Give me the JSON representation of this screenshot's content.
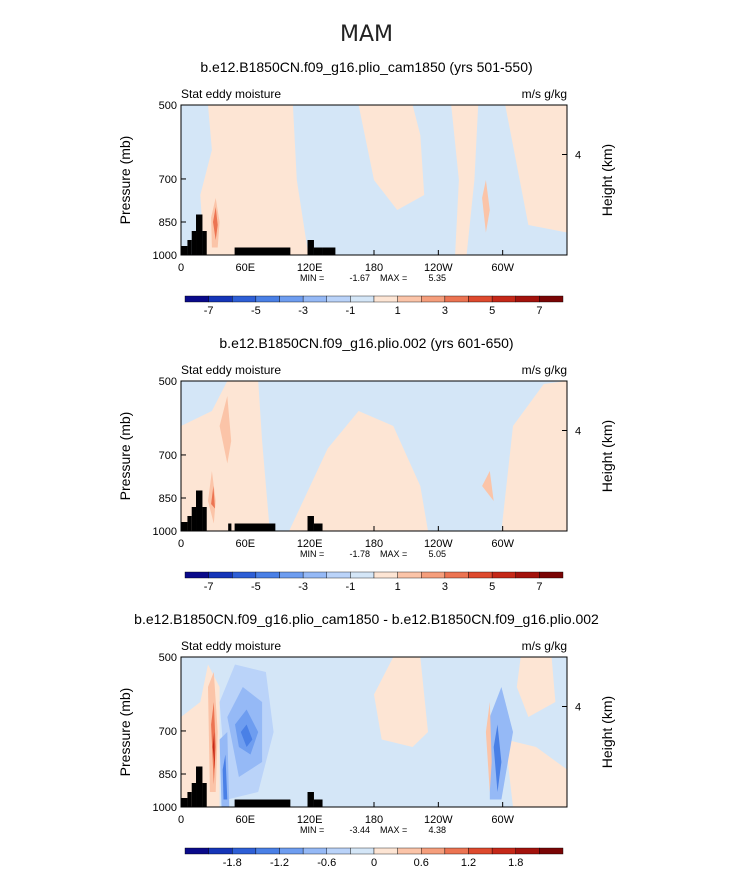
{
  "figure": {
    "title": "MAM"
  },
  "colors": {
    "land": "#000000",
    "pos_light": "#fde5d4",
    "neg_light": "#d4e6f7"
  },
  "chart_data": [
    {
      "type": "heatmap",
      "title": "b.e12.B1850CN.f09_g16.plio_cam1850 (yrs 501-550)",
      "left_label": "Stat eddy moisture",
      "right_label": "m/s g/kg",
      "ylabel": "Pressure (mb)",
      "y2label": "Height (km)",
      "yticks": [
        "500",
        "700",
        "850",
        "1000"
      ],
      "y2ticks": [
        "4"
      ],
      "xticks": [
        "0",
        "60E",
        "120E",
        "180",
        "120W",
        "60W"
      ],
      "min_label": "MIN =",
      "min": "-1.67",
      "max_label": "MAX =",
      "max": "5.35",
      "colorbar_ticks": [
        "-7",
        "-5",
        "-3",
        "-1",
        "1",
        "3",
        "5",
        "7"
      ],
      "colorbar_colors": [
        "#0a0a8a",
        "#1535b8",
        "#2e5fd6",
        "#4a80e6",
        "#6e9df0",
        "#95b9f6",
        "#bad3f9",
        "#d4e6f7",
        "#fde5d4",
        "#fbc4a8",
        "#f59e7c",
        "#ec7452",
        "#de4a2e",
        "#c52818",
        "#a3120c",
        "#7a0505"
      ],
      "land": [
        [
          0,
          6,
          0.06
        ],
        [
          6,
          10,
          0.1
        ],
        [
          10,
          14,
          0.16
        ],
        [
          14,
          20,
          0.27
        ],
        [
          20,
          24,
          0.16
        ],
        [
          50,
          102,
          0.05
        ],
        [
          118,
          124,
          0.1
        ],
        [
          124,
          132,
          0.05
        ],
        [
          132,
          144,
          0.05
        ]
      ]
    },
    {
      "type": "heatmap",
      "title": "b.e12.B1850CN.f09_g16.plio.002 (yrs 601-650)",
      "left_label": "Stat eddy moisture",
      "right_label": "m/s g/kg",
      "ylabel": "Pressure (mb)",
      "y2label": "Height (km)",
      "yticks": [
        "500",
        "700",
        "850",
        "1000"
      ],
      "y2ticks": [
        "4"
      ],
      "xticks": [
        "0",
        "60E",
        "120E",
        "180",
        "120W",
        "60W"
      ],
      "min_label": "MIN =",
      "min": "-1.78",
      "max_label": "MAX =",
      "max": "5.05",
      "colorbar_ticks": [
        "-7",
        "-5",
        "-3",
        "-1",
        "1",
        "3",
        "5",
        "7"
      ],
      "colorbar_colors": [
        "#0a0a8a",
        "#1535b8",
        "#2e5fd6",
        "#4a80e6",
        "#6e9df0",
        "#95b9f6",
        "#bad3f9",
        "#d4e6f7",
        "#fde5d4",
        "#fbc4a8",
        "#f59e7c",
        "#ec7452",
        "#de4a2e",
        "#c52818",
        "#a3120c",
        "#7a0505"
      ],
      "land": [
        [
          0,
          6,
          0.06
        ],
        [
          6,
          10,
          0.1
        ],
        [
          10,
          14,
          0.16
        ],
        [
          14,
          20,
          0.27
        ],
        [
          20,
          24,
          0.16
        ],
        [
          44,
          47,
          0.05
        ],
        [
          50,
          88,
          0.05
        ],
        [
          118,
          124,
          0.1
        ],
        [
          124,
          132,
          0.05
        ]
      ]
    },
    {
      "type": "heatmap",
      "title": "b.e12.B1850CN.f09_g16.plio_cam1850 - b.e12.B1850CN.f09_g16.plio.002",
      "left_label": "Stat eddy moisture",
      "right_label": "m/s g/kg",
      "ylabel": "Pressure (mb)",
      "y2label": "Height (km)",
      "yticks": [
        "500",
        "700",
        "850",
        "1000"
      ],
      "y2ticks": [
        "4"
      ],
      "xticks": [
        "0",
        "60E",
        "120E",
        "180",
        "120W",
        "60W"
      ],
      "min_label": "MIN =",
      "min": "-3.44",
      "max_label": "MAX =",
      "max": "4.38",
      "colorbar_ticks": [
        "-1.8",
        "-1.2",
        "-0.6",
        "0",
        "0.6",
        "1.2",
        "1.8"
      ],
      "colorbar_colors": [
        "#0a0a8a",
        "#1535b8",
        "#2e5fd6",
        "#4a80e6",
        "#6e9df0",
        "#95b9f6",
        "#bad3f9",
        "#d4e6f7",
        "#fde5d4",
        "#fbc4a8",
        "#f59e7c",
        "#ec7452",
        "#de4a2e",
        "#c52818",
        "#a3120c",
        "#7a0505"
      ],
      "land": [
        [
          0,
          6,
          0.06
        ],
        [
          6,
          10,
          0.1
        ],
        [
          10,
          14,
          0.16
        ],
        [
          14,
          20,
          0.27
        ],
        [
          20,
          24,
          0.16
        ],
        [
          50,
          102,
          0.05
        ],
        [
          118,
          124,
          0.1
        ],
        [
          124,
          132,
          0.05
        ]
      ]
    }
  ]
}
